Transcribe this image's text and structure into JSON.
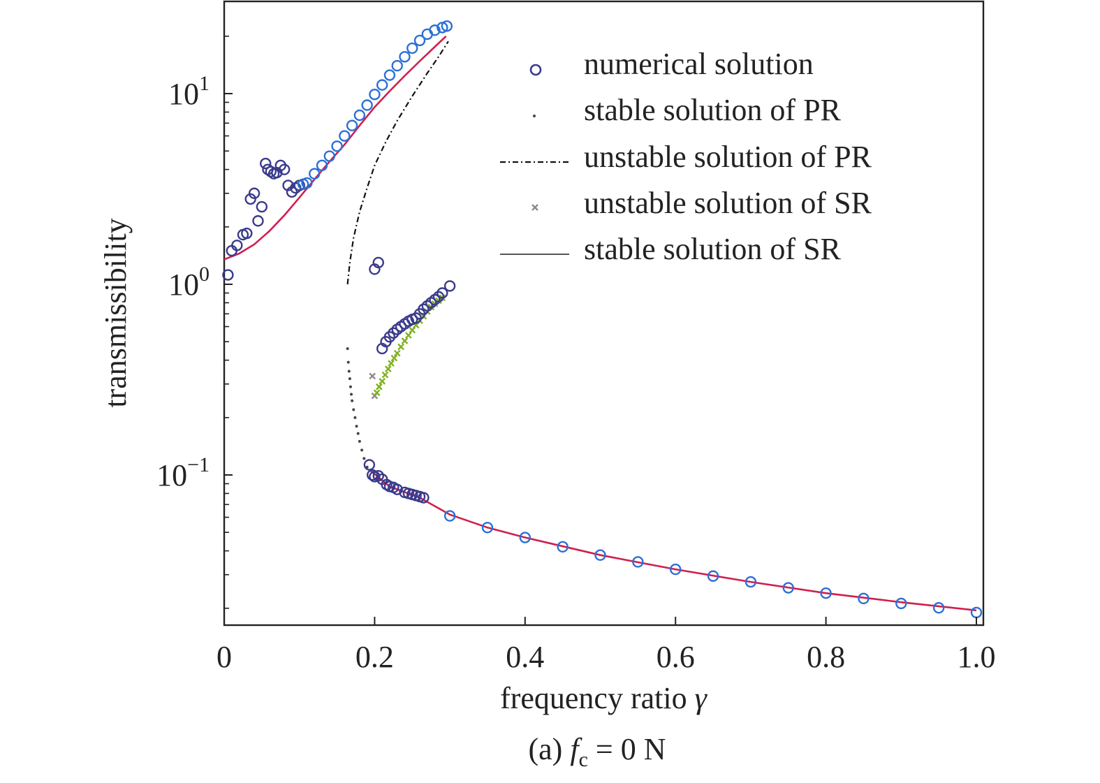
{
  "chart_data": {
    "type": "scatter",
    "caption": {
      "prefix": "(a)",
      "var": "f",
      "sub": "c",
      "rest": "= 0 N"
    },
    "xlabel": {
      "text": "frequency ratio",
      "symbol": "γ"
    },
    "ylabel": "transmissibility",
    "xlim": [
      0,
      1.0
    ],
    "ylim": [
      0.0175,
      26
    ],
    "yscale": "log",
    "x_ticks": [
      {
        "value": 0,
        "label": "0"
      },
      {
        "value": 0.2,
        "label": "0.2"
      },
      {
        "value": 0.4,
        "label": "0.4"
      },
      {
        "value": 0.6,
        "label": "0.6"
      },
      {
        "value": 0.8,
        "label": "0.8"
      },
      {
        "value": 1.0,
        "label": "1.0"
      }
    ],
    "y_ticks": [
      {
        "value": 10,
        "base": "10",
        "exp": "1"
      },
      {
        "value": 1,
        "base": "10",
        "exp": "0"
      },
      {
        "value": 0.1,
        "base": "10",
        "exp": "−1"
      }
    ],
    "legend_position": "top-right",
    "legend": [
      {
        "key": "numerical",
        "label": "numerical solution",
        "marker": "circle"
      },
      {
        "key": "pr_stable",
        "label": "stable solution of PR",
        "marker": "dot"
      },
      {
        "key": "pr_unstable",
        "label": "unstable solution of PR",
        "marker": "dashdot-line"
      },
      {
        "key": "sr_unstable",
        "label": "unstable solution of SR",
        "marker": "cross"
      },
      {
        "key": "sr_stable",
        "label": "stable solution of SR",
        "marker": "solid-line"
      }
    ],
    "colors": {
      "axis": "#222222",
      "numerical_marker": "#3a3a8c",
      "numerical_marker_dense": "#2c6fd6",
      "sr_stable_line": "#d01f4f",
      "pr_unstable_line": "#111111",
      "pr_stable_dots": "#444444",
      "sr_unstable_cross": "#8a8a8a",
      "sr_unstable_cross_green": "#7fb21e",
      "legend_solid_line": "#555555"
    },
    "series": [
      {
        "name": "stable solution of SR (upper branch)",
        "key": "sr_stable",
        "x": [
          0.0,
          0.02,
          0.04,
          0.06,
          0.08,
          0.1,
          0.12,
          0.14,
          0.16,
          0.18,
          0.2,
          0.22,
          0.24,
          0.26,
          0.28,
          0.295
        ],
        "y": [
          1.35,
          1.45,
          1.62,
          1.9,
          2.3,
          2.85,
          3.55,
          4.4,
          5.4,
          6.8,
          8.5,
          10.3,
          12.4,
          14.8,
          17.6,
          20.0
        ]
      },
      {
        "name": "stable solution of SR (lower branch)",
        "key": "sr_stable",
        "x": [
          0.195,
          0.22,
          0.26,
          0.3,
          0.35,
          0.4,
          0.5,
          0.6,
          0.7,
          0.8,
          0.9,
          1.0
        ],
        "y": [
          0.105,
          0.087,
          0.076,
          0.062,
          0.053,
          0.047,
          0.038,
          0.032,
          0.0275,
          0.024,
          0.0215,
          0.0195
        ]
      },
      {
        "name": "unstable solution of PR",
        "key": "pr_unstable",
        "x": [
          0.164,
          0.167,
          0.172,
          0.18,
          0.19,
          0.2,
          0.215,
          0.23,
          0.25,
          0.27,
          0.285,
          0.298
        ],
        "y": [
          1.0,
          1.3,
          1.75,
          2.4,
          3.2,
          4.2,
          5.6,
          7.2,
          9.7,
          12.8,
          15.6,
          18.8
        ]
      },
      {
        "name": "stable solution of PR",
        "key": "pr_stable",
        "x": [
          0.164,
          0.165,
          0.166,
          0.167,
          0.168,
          0.169,
          0.17,
          0.172,
          0.174,
          0.176,
          0.178,
          0.18,
          0.183,
          0.186,
          0.19
        ],
        "y": [
          0.46,
          0.39,
          0.35,
          0.32,
          0.29,
          0.265,
          0.245,
          0.22,
          0.2,
          0.18,
          0.165,
          0.15,
          0.135,
          0.122,
          0.11
        ]
      },
      {
        "name": "unstable solution of SR",
        "key": "sr_unstable",
        "x": [
          0.197,
          0.2,
          0.203,
          0.206,
          0.21,
          0.214,
          0.218,
          0.222,
          0.226,
          0.23,
          0.235,
          0.24,
          0.245,
          0.25,
          0.255,
          0.26,
          0.265,
          0.27,
          0.275,
          0.28,
          0.285,
          0.29
        ],
        "y": [
          0.33,
          0.26,
          0.27,
          0.29,
          0.31,
          0.335,
          0.36,
          0.385,
          0.41,
          0.435,
          0.47,
          0.505,
          0.54,
          0.575,
          0.61,
          0.645,
          0.68,
          0.72,
          0.76,
          0.79,
          0.82,
          0.85
        ]
      },
      {
        "name": "numerical solution (upper branch)",
        "key": "numerical",
        "x": [
          0.005,
          0.01,
          0.017,
          0.025,
          0.03,
          0.035,
          0.04,
          0.045,
          0.05,
          0.055,
          0.058,
          0.062,
          0.066,
          0.07,
          0.075,
          0.08,
          0.085,
          0.09,
          0.095,
          0.1,
          0.105,
          0.11,
          0.12,
          0.13,
          0.14,
          0.15,
          0.16,
          0.17,
          0.18,
          0.19,
          0.2,
          0.21,
          0.22,
          0.23,
          0.24,
          0.25,
          0.26,
          0.27,
          0.28,
          0.29,
          0.296
        ],
        "y": [
          1.12,
          1.5,
          1.6,
          1.82,
          1.85,
          2.8,
          3.0,
          2.15,
          2.55,
          4.3,
          4.0,
          3.9,
          3.8,
          3.85,
          4.2,
          4.0,
          3.3,
          3.05,
          3.2,
          3.3,
          3.35,
          3.4,
          3.8,
          4.2,
          4.7,
          5.3,
          6.0,
          6.8,
          7.7,
          8.7,
          9.9,
          11.1,
          12.5,
          14.0,
          15.6,
          17.3,
          19.0,
          20.5,
          21.5,
          22.2,
          22.6
        ]
      },
      {
        "name": "numerical solution (middle branch)",
        "key": "numerical",
        "x": [
          0.2,
          0.205,
          0.21,
          0.215,
          0.22,
          0.225,
          0.23,
          0.235,
          0.24,
          0.245,
          0.25,
          0.255,
          0.26,
          0.265,
          0.27,
          0.275,
          0.28,
          0.285,
          0.29,
          0.3
        ],
        "y": [
          1.2,
          1.3,
          0.46,
          0.5,
          0.53,
          0.555,
          0.58,
          0.6,
          0.62,
          0.64,
          0.655,
          0.665,
          0.7,
          0.74,
          0.77,
          0.8,
          0.83,
          0.86,
          0.9,
          0.98
        ]
      },
      {
        "name": "numerical solution (lower branch)",
        "key": "numerical",
        "x": [
          0.193,
          0.197,
          0.2,
          0.205,
          0.21,
          0.216,
          0.22,
          0.225,
          0.23,
          0.24,
          0.245,
          0.25,
          0.255,
          0.26,
          0.265,
          0.3,
          0.35,
          0.4,
          0.45,
          0.5,
          0.55,
          0.6,
          0.65,
          0.7,
          0.75,
          0.8,
          0.85,
          0.9,
          0.95,
          1.0
        ],
        "y": [
          0.113,
          0.1,
          0.098,
          0.099,
          0.095,
          0.089,
          0.087,
          0.086,
          0.084,
          0.081,
          0.08,
          0.079,
          0.078,
          0.077,
          0.076,
          0.061,
          0.053,
          0.047,
          0.042,
          0.038,
          0.035,
          0.032,
          0.0295,
          0.0275,
          0.0256,
          0.024,
          0.0225,
          0.0212,
          0.0201,
          0.019
        ]
      }
    ]
  }
}
